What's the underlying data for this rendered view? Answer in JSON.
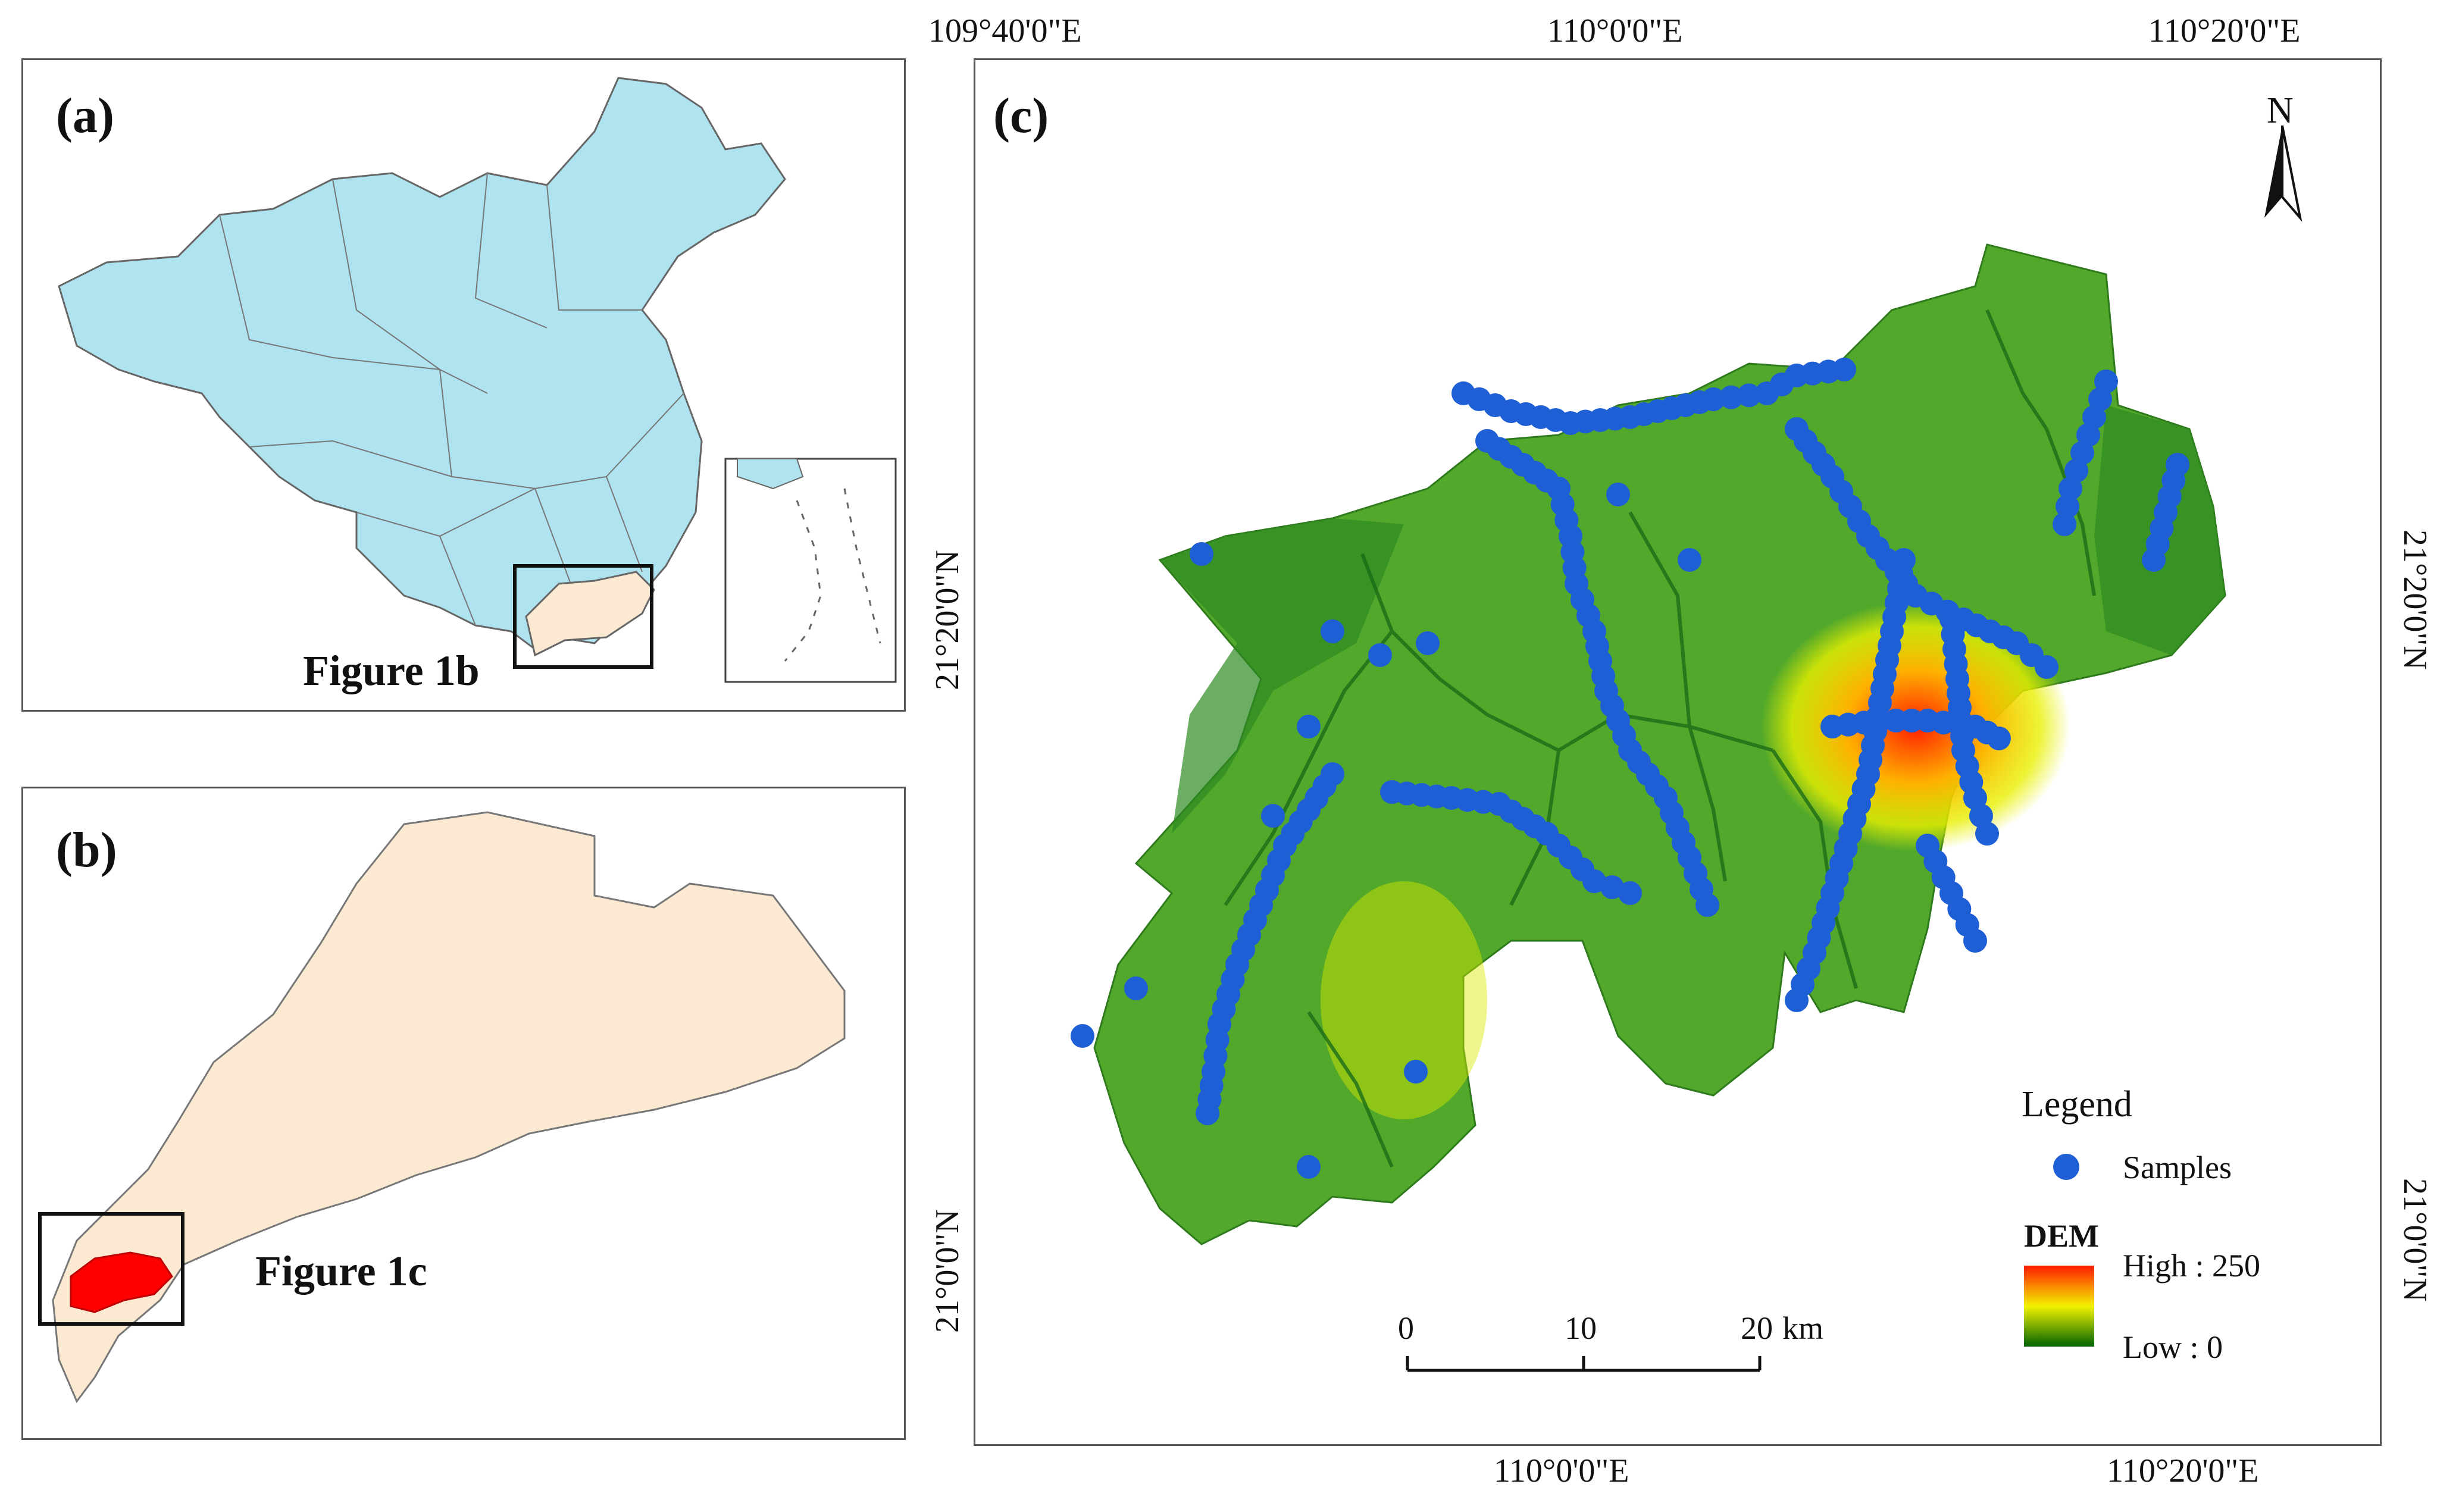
{
  "panel_a": {
    "label": "(a)",
    "box_label": "Figure 1b"
  },
  "panel_b": {
    "label": "(b)",
    "box_label": "Figure 1c"
  },
  "panel_c": {
    "label": "(c)",
    "top_ticks": [
      "109°40'0\"E",
      "110°0'0\"E",
      "110°20'0\"E"
    ],
    "bottom_ticks": [
      "110°0'0\"E",
      "110°20'0\"E"
    ],
    "left_ticks": [
      "21°20'0\"N",
      "21°0'0\"N"
    ],
    "right_ticks": [
      "21°20'0\"N",
      "21°0'0\"N"
    ],
    "north_label": "N",
    "legend": {
      "title": "Legend",
      "samples_label": "Samples",
      "dem_title": "DEM",
      "high_label": "High : 250",
      "low_label": "Low : 0"
    },
    "scale_bar": {
      "labels": [
        "0",
        "10",
        "20"
      ],
      "unit": "km"
    },
    "colors": {
      "samples": "#1f5fd6",
      "dem_high": "#ff1a00",
      "dem_mid": "#f2f200",
      "dem_low": "#006400",
      "china_fill": "#aee3ef",
      "guangdong_fill": "#fbe9d2",
      "study_area": "#ff0000"
    }
  }
}
